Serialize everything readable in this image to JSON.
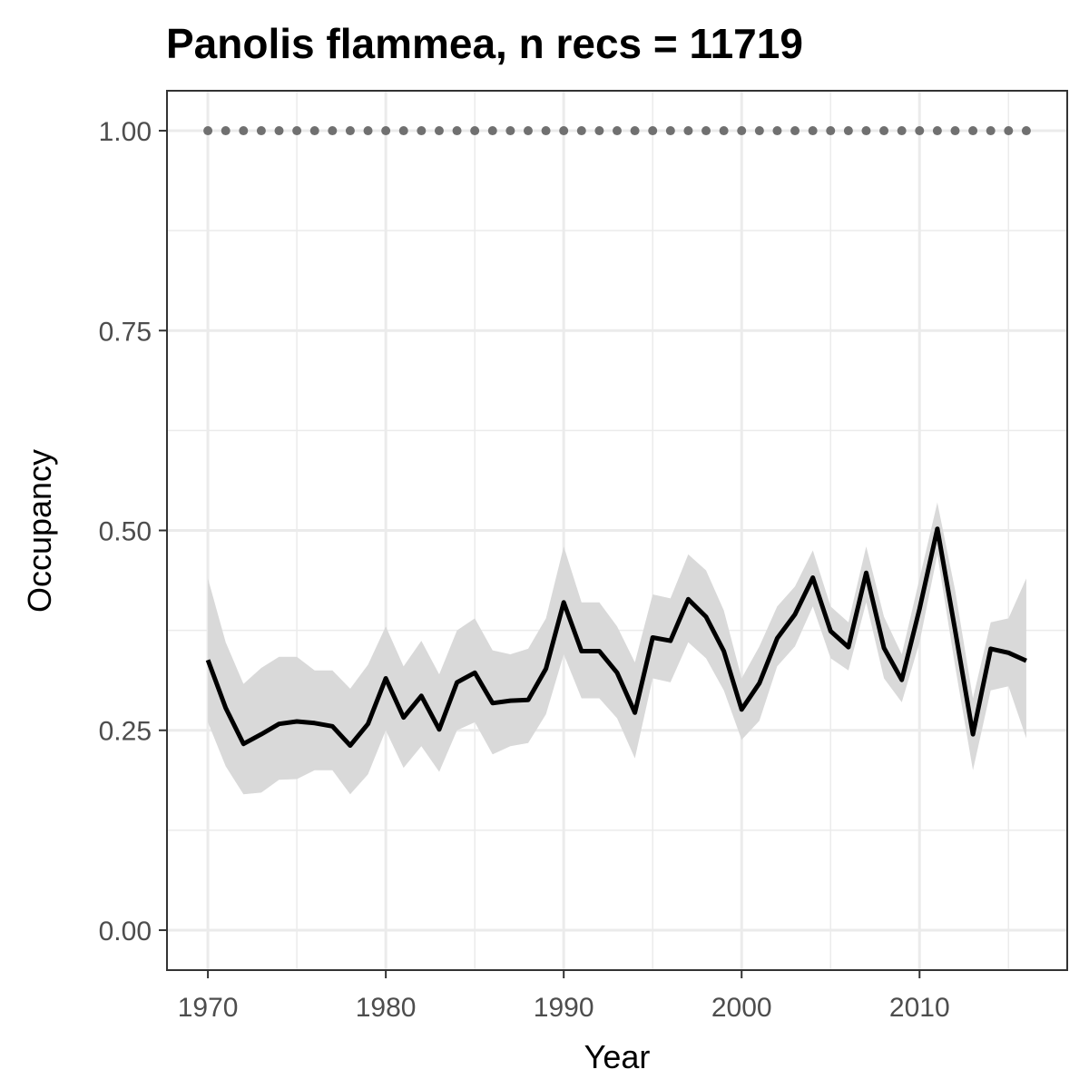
{
  "chart_data": {
    "type": "line",
    "title": "Panolis flammea, n recs = 11719",
    "xlabel": "Year",
    "ylabel": "Occupancy",
    "xlim": [
      1967.7,
      2018.3
    ],
    "ylim": [
      -0.05,
      1.05
    ],
    "x_ticks": [
      1970,
      1980,
      1990,
      2000,
      2010
    ],
    "x_tick_labels": [
      "1970",
      "1980",
      "1990",
      "2000",
      "2010"
    ],
    "y_ticks": [
      0,
      0.25,
      0.5,
      0.75,
      1
    ],
    "y_tick_labels": [
      "0.00",
      "0.25",
      "0.50",
      "0.75",
      "1.00"
    ],
    "grid": true,
    "legend": "none",
    "colors": {
      "line": "#000000",
      "ribbon": "#d9d9d9",
      "dots": "#707070",
      "grid": "#ebebeb",
      "panel_border": "#333333",
      "tick_text": "#4d4d4d"
    },
    "series": [
      {
        "kind": "mean",
        "x": [
          1970,
          1971,
          1972,
          1973,
          1974,
          1975,
          1976,
          1977,
          1978,
          1979,
          1980,
          1981,
          1982,
          1983,
          1984,
          1985,
          1986,
          1987,
          1988,
          1989,
          1990,
          1991,
          1992,
          1993,
          1994,
          1995,
          1996,
          1997,
          1998,
          1999,
          2000,
          2001,
          2002,
          2003,
          2004,
          2005,
          2006,
          2007,
          2008,
          2009,
          2010,
          2011,
          2012,
          2013,
          2014,
          2015,
          2016
        ],
        "y": [
          0.338,
          0.278,
          0.233,
          0.245,
          0.258,
          0.261,
          0.259,
          0.255,
          0.231,
          0.258,
          0.315,
          0.266,
          0.293,
          0.251,
          0.31,
          0.322,
          0.284,
          0.287,
          0.288,
          0.327,
          0.41,
          0.349,
          0.349,
          0.322,
          0.272,
          0.366,
          0.362,
          0.414,
          0.392,
          0.349,
          0.276,
          0.309,
          0.365,
          0.395,
          0.441,
          0.374,
          0.354,
          0.447,
          0.353,
          0.313,
          0.402,
          0.502,
          0.375,
          0.245,
          0.352,
          0.347,
          0.337
        ]
      },
      {
        "kind": "credible_interval_lower",
        "x": [
          1970,
          1971,
          1972,
          1973,
          1974,
          1975,
          1976,
          1977,
          1978,
          1979,
          1980,
          1981,
          1982,
          1983,
          1984,
          1985,
          1986,
          1987,
          1988,
          1989,
          1990,
          1991,
          1992,
          1993,
          1994,
          1995,
          1996,
          1997,
          1998,
          1999,
          2000,
          2001,
          2002,
          2003,
          2004,
          2005,
          2006,
          2007,
          2008,
          2009,
          2010,
          2011,
          2012,
          2013,
          2014,
          2015,
          2016
        ],
        "y": [
          0.26,
          0.205,
          0.17,
          0.172,
          0.188,
          0.189,
          0.2,
          0.2,
          0.17,
          0.195,
          0.25,
          0.203,
          0.23,
          0.198,
          0.25,
          0.26,
          0.22,
          0.23,
          0.234,
          0.27,
          0.345,
          0.29,
          0.29,
          0.265,
          0.215,
          0.315,
          0.31,
          0.36,
          0.34,
          0.3,
          0.238,
          0.262,
          0.33,
          0.355,
          0.405,
          0.34,
          0.325,
          0.41,
          0.315,
          0.285,
          0.36,
          0.47,
          0.33,
          0.2,
          0.3,
          0.305,
          0.24
        ]
      },
      {
        "kind": "credible_interval_upper",
        "x": [
          1970,
          1971,
          1972,
          1973,
          1974,
          1975,
          1976,
          1977,
          1978,
          1979,
          1980,
          1981,
          1982,
          1983,
          1984,
          1985,
          1986,
          1987,
          1988,
          1989,
          1990,
          1991,
          1992,
          1993,
          1994,
          1995,
          1996,
          1997,
          1998,
          1999,
          2000,
          2001,
          2002,
          2003,
          2004,
          2005,
          2006,
          2007,
          2008,
          2009,
          2010,
          2011,
          2012,
          2013,
          2014,
          2015,
          2016
        ],
        "y": [
          0.44,
          0.36,
          0.308,
          0.328,
          0.342,
          0.342,
          0.325,
          0.325,
          0.302,
          0.332,
          0.38,
          0.33,
          0.362,
          0.32,
          0.375,
          0.39,
          0.35,
          0.345,
          0.352,
          0.39,
          0.48,
          0.41,
          0.41,
          0.38,
          0.335,
          0.42,
          0.415,
          0.47,
          0.45,
          0.4,
          0.315,
          0.355,
          0.405,
          0.43,
          0.475,
          0.405,
          0.385,
          0.48,
          0.392,
          0.345,
          0.44,
          0.535,
          0.425,
          0.29,
          0.385,
          0.39,
          0.44
        ]
      },
      {
        "kind": "dotted_reference",
        "x": [
          1970,
          1971,
          1972,
          1973,
          1974,
          1975,
          1976,
          1977,
          1978,
          1979,
          1980,
          1981,
          1982,
          1983,
          1984,
          1985,
          1986,
          1987,
          1988,
          1989,
          1990,
          1991,
          1992,
          1993,
          1994,
          1995,
          1996,
          1997,
          1998,
          1999,
          2000,
          2001,
          2002,
          2003,
          2004,
          2005,
          2006,
          2007,
          2008,
          2009,
          2010,
          2011,
          2012,
          2013,
          2014,
          2015,
          2016
        ],
        "y": [
          1,
          1,
          1,
          1,
          1,
          1,
          1,
          1,
          1,
          1,
          1,
          1,
          1,
          1,
          1,
          1,
          1,
          1,
          1,
          1,
          1,
          1,
          1,
          1,
          1,
          1,
          1,
          1,
          1,
          1,
          1,
          1,
          1,
          1,
          1,
          1,
          1,
          1,
          1,
          1,
          1,
          1,
          1,
          1,
          1,
          1,
          1
        ]
      }
    ]
  }
}
